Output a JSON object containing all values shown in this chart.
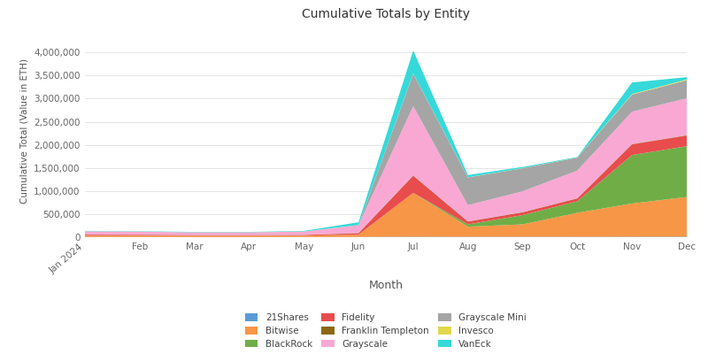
{
  "title": "Cumulative Totals by Entity",
  "xlabel": "Month",
  "ylabel": "Cumulative Total (Value in ETH)",
  "months": [
    "Jan 2024",
    "Feb",
    "Mar",
    "Apr",
    "May",
    "Jun",
    "Jul",
    "Aug",
    "Sep",
    "Oct",
    "Nov",
    "Dec"
  ],
  "entities": [
    "21Shares",
    "Bitwise",
    "BlackRock",
    "Fidelity",
    "Franklin Templeton",
    "Grayscale",
    "Grayscale Mini",
    "Invesco",
    "VanEck"
  ],
  "colors": {
    "21Shares": "#5b9bd5",
    "Bitwise": "#f79646",
    "BlackRock": "#70ad47",
    "Fidelity": "#e84c4c",
    "Franklin Templeton": "#8b6914",
    "Grayscale": "#f9a8d4",
    "Grayscale Mini": "#a5a5a5",
    "Invesco": "#e2d84b",
    "VanEck": "#36d9d9"
  },
  "data": {
    "21Shares": [
      3000,
      3000,
      3000,
      3000,
      3000,
      5000,
      10000,
      8000,
      8000,
      8000,
      10000,
      10000
    ],
    "Bitwise": [
      30000,
      30000,
      28000,
      28000,
      30000,
      50000,
      950000,
      220000,
      270000,
      520000,
      720000,
      860000
    ],
    "BlackRock": [
      0,
      0,
      0,
      0,
      0,
      0,
      0,
      50000,
      200000,
      250000,
      1050000,
      1100000
    ],
    "Fidelity": [
      20000,
      18000,
      15000,
      15000,
      15000,
      30000,
      370000,
      60000,
      60000,
      60000,
      230000,
      230000
    ],
    "Franklin Templeton": [
      3000,
      3000,
      3000,
      3000,
      3000,
      5000,
      8000,
      5000,
      5000,
      5000,
      8000,
      8000
    ],
    "Grayscale": [
      70000,
      65000,
      55000,
      55000,
      70000,
      170000,
      1500000,
      350000,
      450000,
      600000,
      700000,
      800000
    ],
    "Grayscale Mini": [
      0,
      0,
      0,
      0,
      0,
      0,
      700000,
      600000,
      500000,
      280000,
      370000,
      390000
    ],
    "Invesco": [
      2000,
      2000,
      2000,
      2000,
      2000,
      3000,
      5000,
      3000,
      3000,
      3000,
      12000,
      18000
    ],
    "VanEck": [
      8000,
      8000,
      8000,
      8000,
      12000,
      60000,
      500000,
      50000,
      25000,
      10000,
      250000,
      50000
    ]
  },
  "background_color": "#ffffff",
  "grid_color": "#e5e5e5",
  "facecolor": "#ffffff"
}
